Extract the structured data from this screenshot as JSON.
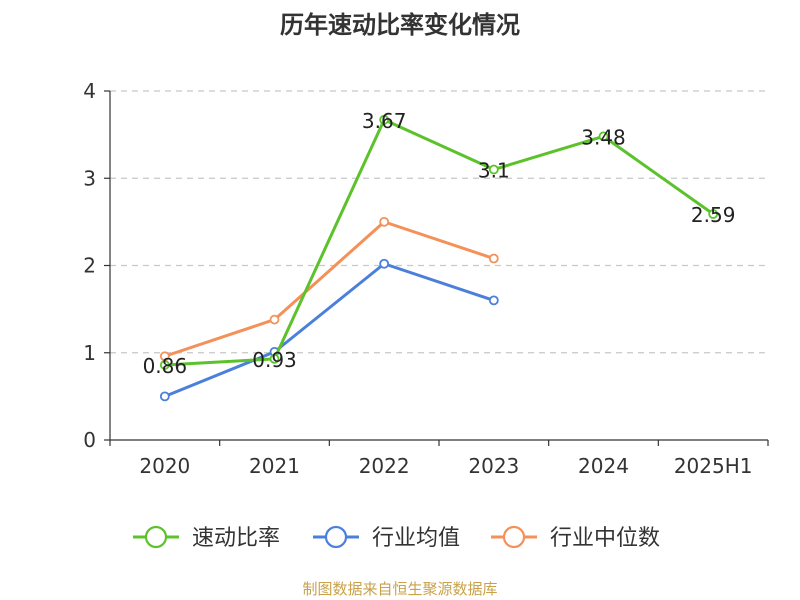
{
  "chart_data": {
    "type": "line",
    "title": "历年速动比率变化情况",
    "categories": [
      "2020",
      "2021",
      "2022",
      "2023",
      "2024",
      "2025H1"
    ],
    "ylim": [
      0,
      4
    ],
    "yticks": [
      "0",
      "1",
      "2",
      "3",
      "4"
    ],
    "grid": true,
    "legend_position": "bottom",
    "series": [
      {
        "name": "速动比率",
        "color": "#5cc22b",
        "values": [
          0.86,
          0.93,
          3.67,
          3.1,
          3.48,
          2.59
        ],
        "labels": [
          "0.86",
          "0.93",
          "3.67",
          "3.1",
          "3.48",
          "2.59"
        ]
      },
      {
        "name": "行业均值",
        "color": "#4a7fdb",
        "values": [
          0.5,
          1.01,
          2.02,
          1.6,
          null,
          null
        ]
      },
      {
        "name": "行业中位数",
        "color": "#f39158",
        "values": [
          0.96,
          1.38,
          2.5,
          2.08,
          null,
          null
        ]
      }
    ]
  },
  "source": "制图数据来自恒生聚源数据库"
}
